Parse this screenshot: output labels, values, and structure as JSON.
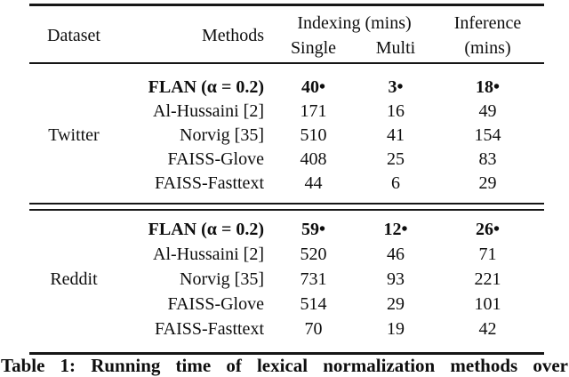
{
  "table": {
    "header": {
      "dataset": "Dataset",
      "methods": "Methods",
      "indexing_group": "Indexing (mins)",
      "single": "Single",
      "multi": "Multi",
      "inference_line1": "Inference",
      "inference_line2": "(mins)"
    },
    "sections": [
      {
        "dataset": "Twitter",
        "rows": [
          {
            "method": "FLAN (α = 0.2)",
            "single": "40•",
            "multi": "3•",
            "inference": "18•",
            "best": true
          },
          {
            "method": "Al-Hussaini [2]",
            "single": "171",
            "multi": "16",
            "inference": "49",
            "best": false
          },
          {
            "method": "Norvig [35]",
            "single": "510",
            "multi": "41",
            "inference": "154",
            "best": false
          },
          {
            "method": "FAISS-Glove",
            "single": "408",
            "multi": "25",
            "inference": "83",
            "best": false
          },
          {
            "method": "FAISS-Fasttext",
            "single": "44",
            "multi": "6",
            "inference": "29",
            "best": false
          }
        ]
      },
      {
        "dataset": "Reddit",
        "rows": [
          {
            "method": "FLAN (α = 0.2)",
            "single": "59•",
            "multi": "12•",
            "inference": "26•",
            "best": true
          },
          {
            "method": "Al-Hussaini [2]",
            "single": "520",
            "multi": "46",
            "inference": "71",
            "best": false
          },
          {
            "method": "Norvig [35]",
            "single": "731",
            "multi": "93",
            "inference": "221",
            "best": false
          },
          {
            "method": "FAISS-Glove",
            "single": "514",
            "multi": "29",
            "inference": "101",
            "best": false
          },
          {
            "method": "FAISS-Fasttext",
            "single": "70",
            "multi": "19",
            "inference": "42",
            "best": false
          }
        ]
      }
    ],
    "caption": "Table 1: Running time of lexical normalization methods over"
  },
  "colors": {
    "background": "#ffffff",
    "text": "#0e0e0e",
    "rule": "#161616"
  }
}
